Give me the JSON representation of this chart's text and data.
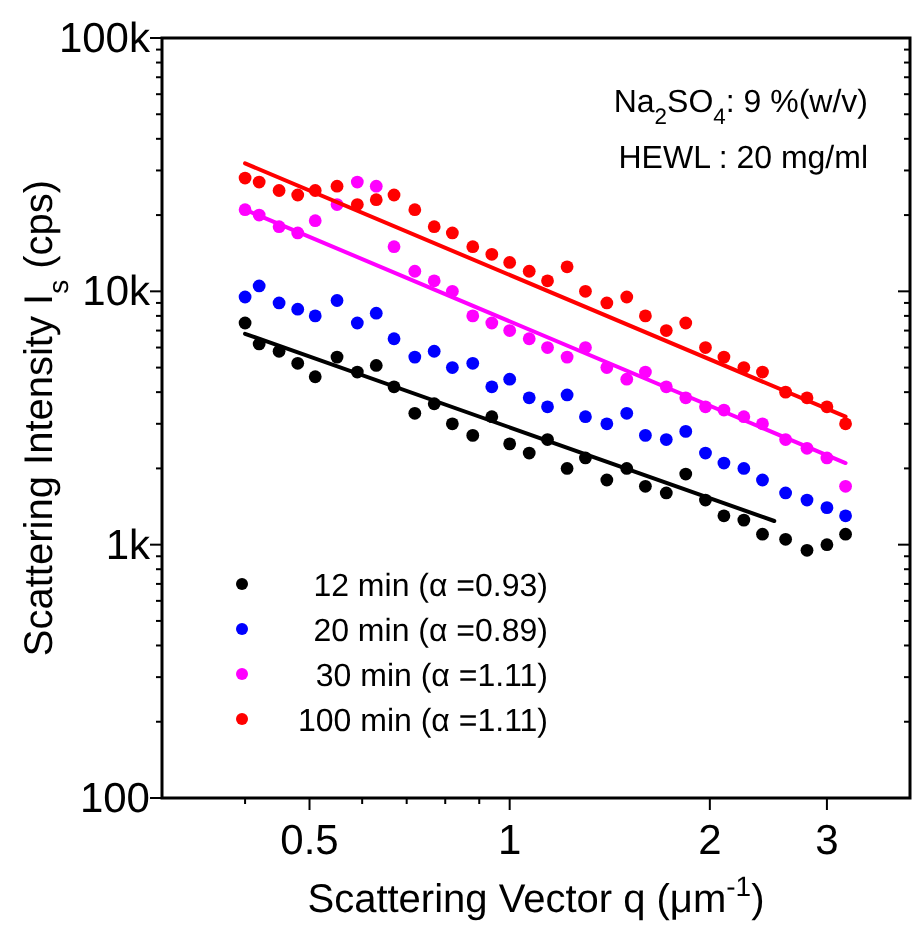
{
  "chart_data": {
    "type": "scatter",
    "xlabel": "Scattering Vector q (μm$^{-1}$)",
    "ylabel": "Scattering Intensity I$_{s}$ (cps)",
    "annotations": [
      "Na$_{2}$SO$_{4}$: 9 %(w/v)",
      "HEWL : 20 mg/ml"
    ],
    "log": "xy",
    "xlim": [
      0.3,
      4
    ],
    "xticks": [
      {
        "value": 0.4,
        "label": null
      },
      0.5,
      {
        "value": 0.6,
        "label": null
      },
      {
        "value": 0.7,
        "label": null
      },
      {
        "value": 0.8,
        "label": null
      },
      {
        "value": 0.9,
        "label": null
      },
      1,
      2,
      3
    ],
    "ylim": [
      100,
      100000
    ],
    "yticks": [
      {
        "value": 100,
        "label": "100"
      },
      {
        "value": 200,
        "label": null
      },
      {
        "value": 300,
        "label": null
      },
      {
        "value": 400,
        "label": null
      },
      {
        "value": 500,
        "label": null
      },
      {
        "value": 600,
        "label": null
      },
      {
        "value": 700,
        "label": null
      },
      {
        "value": 800,
        "label": null
      },
      {
        "value": 900,
        "label": null
      },
      {
        "value": 1000,
        "label": "1k"
      },
      {
        "value": 2000,
        "label": null
      },
      {
        "value": 3000,
        "label": null
      },
      {
        "value": 4000,
        "label": null
      },
      {
        "value": 5000,
        "label": null
      },
      {
        "value": 6000,
        "label": null
      },
      {
        "value": 7000,
        "label": null
      },
      {
        "value": 8000,
        "label": null
      },
      {
        "value": 9000,
        "label": null
      },
      {
        "value": 10000,
        "label": "10k"
      },
      {
        "value": 20000,
        "label": null
      },
      {
        "value": 30000,
        "label": null
      },
      {
        "value": 40000,
        "label": null
      },
      {
        "value": 50000,
        "label": null
      },
      {
        "value": 60000,
        "label": null
      },
      {
        "value": 70000,
        "label": null
      },
      {
        "value": 80000,
        "label": null
      },
      {
        "value": 90000,
        "label": null
      },
      {
        "value": 100000,
        "label": "100k"
      }
    ],
    "x": [
      0.4,
      0.42,
      0.45,
      0.48,
      0.51,
      0.55,
      0.59,
      0.63,
      0.67,
      0.72,
      0.77,
      0.82,
      0.88,
      0.94,
      1.0,
      1.07,
      1.14,
      1.22,
      1.3,
      1.4,
      1.5,
      1.6,
      1.72,
      1.84,
      1.97,
      2.1,
      2.25,
      2.4,
      2.6,
      2.8,
      3.0,
      3.2
    ],
    "marker": "circle",
    "legend": "bottom left",
    "grid": false,
    "series": [
      {
        "name": "12 min (α =0.93)",
        "color": "#000000",
        "values": [
          7500,
          6200,
          5800,
          5200,
          4600,
          5500,
          4800,
          5100,
          4200,
          3300,
          3600,
          3000,
          2700,
          3200,
          2500,
          2300,
          2600,
          2000,
          2200,
          1800,
          2000,
          1700,
          1600,
          1900,
          1500,
          1300,
          1250,
          1100,
          1050,
          950,
          1000,
          1100
        ]
      },
      {
        "name": "20 min (α =0.89)",
        "color": "#0000ff",
        "values": [
          9500,
          10500,
          9000,
          8500,
          8000,
          9200,
          7500,
          8200,
          6500,
          5500,
          5800,
          5000,
          5200,
          4200,
          4500,
          3800,
          3500,
          3900,
          3200,
          3000,
          3300,
          2700,
          2600,
          2800,
          2300,
          2100,
          2000,
          1800,
          1600,
          1500,
          1400,
          1300
        ]
      },
      {
        "name": "30 min (α =1.11)",
        "color": "#ff00ff",
        "values": [
          21000,
          20000,
          18000,
          17000,
          19000,
          22000,
          27000,
          26000,
          15000,
          12000,
          11000,
          10000,
          8000,
          7500,
          7000,
          6500,
          6000,
          5500,
          6000,
          5000,
          4500,
          4800,
          4200,
          3800,
          3500,
          3400,
          3200,
          3000,
          2600,
          2400,
          2200,
          1700
        ]
      },
      {
        "name": "100 min (α =1.11)",
        "color": "#ff0000",
        "values": [
          28000,
          27000,
          25000,
          24000,
          25000,
          26000,
          22000,
          23000,
          24000,
          21000,
          18000,
          17000,
          15000,
          14000,
          13000,
          12000,
          11000,
          12500,
          10000,
          9000,
          9500,
          8000,
          7000,
          7500,
          6000,
          5500,
          5000,
          4800,
          4000,
          3800,
          3500,
          3000
        ]
      },
      {
        "type": "line",
        "marker": "none",
        "color": "#000000",
        "x": [
          0.4,
          2.5
        ],
        "values": [
          6800,
          1240
        ]
      },
      {
        "type": "line",
        "marker": "none",
        "color": "#ff00ff",
        "x": [
          0.4,
          3.2
        ],
        "values": [
          21000,
          2100
        ]
      },
      {
        "type": "line",
        "marker": "none",
        "color": "#ff0000",
        "x": [
          0.4,
          3.2
        ],
        "values": [
          32000,
          3200
        ]
      }
    ]
  }
}
